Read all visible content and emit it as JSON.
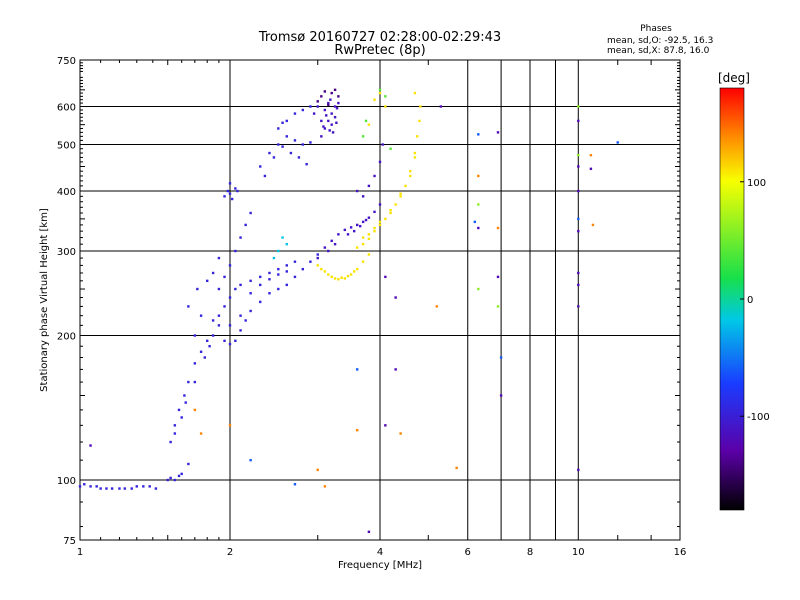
{
  "header": {
    "title_line1": "Tromsø 20160727 02:28:00-02:29:43",
    "title_line2": "RwPretec (8p)",
    "stats_title": "Phases",
    "stats_o": "mean, sd,O: -92.5, 16.3",
    "stats_x": "mean, sd,X:  87.8, 16.0"
  },
  "chart_data": {
    "type": "scatter",
    "xlabel": "Frequency [MHz]",
    "ylabel": "Stationary phase Virtual Height [km]",
    "xscale": "log",
    "yscale": "log",
    "xlim": [
      1,
      16
    ],
    "ylim": [
      75,
      750
    ],
    "xticks": [
      1,
      2,
      4,
      6,
      8,
      10,
      16
    ],
    "xtick_labels": [
      "1",
      "2",
      "4",
      "6",
      "8",
      "10",
      "16"
    ],
    "x_gridlines": [
      2,
      4,
      6,
      7,
      8,
      9,
      10
    ],
    "yticks": [
      75,
      100,
      200,
      300,
      400,
      500,
      600,
      750
    ],
    "ytick_labels": [
      "75",
      "100",
      "200",
      "300",
      "400",
      "500",
      "600",
      "750"
    ],
    "y_gridlines": [
      100,
      200,
      300,
      400,
      500,
      600
    ],
    "colorbar": {
      "label": "[deg]",
      "range": [
        -180,
        180
      ],
      "ticks": [
        100,
        0,
        -100
      ],
      "tick_labels": [
        "100",
        "0",
        "-100"
      ]
    },
    "series": [
      {
        "color_value": -95,
        "points": [
          [
            1.0,
            97
          ],
          [
            1.02,
            98
          ],
          [
            1.05,
            97
          ],
          [
            1.08,
            97
          ],
          [
            1.1,
            96
          ],
          [
            1.13,
            96
          ],
          [
            1.16,
            96
          ],
          [
            1.2,
            96
          ],
          [
            1.23,
            96
          ],
          [
            1.27,
            96
          ],
          [
            1.3,
            97
          ],
          [
            1.34,
            97
          ],
          [
            1.38,
            97
          ],
          [
            1.42,
            96
          ],
          [
            1.5,
            100
          ],
          [
            1.52,
            101
          ],
          [
            1.55,
            100
          ],
          [
            1.58,
            102
          ],
          [
            1.6,
            103
          ],
          [
            1.65,
            108
          ],
          [
            1.52,
            120
          ],
          [
            1.55,
            130
          ],
          [
            1.58,
            140
          ],
          [
            1.62,
            150
          ],
          [
            1.65,
            160
          ],
          [
            1.7,
            175
          ],
          [
            1.75,
            185
          ],
          [
            1.8,
            195
          ],
          [
            1.85,
            200
          ],
          [
            1.9,
            210
          ],
          [
            1.55,
            125
          ],
          [
            1.6,
            135
          ],
          [
            1.63,
            145
          ],
          [
            1.7,
            160
          ],
          [
            1.78,
            180
          ],
          [
            1.82,
            190
          ],
          [
            1.95,
            195
          ],
          [
            2.0,
            192
          ],
          [
            2.05,
            195
          ],
          [
            2.1,
            205
          ],
          [
            2.15,
            215
          ],
          [
            2.2,
            225
          ],
          [
            2.3,
            235
          ],
          [
            2.4,
            245
          ],
          [
            2.5,
            250
          ],
          [
            2.6,
            255
          ],
          [
            2.7,
            265
          ],
          [
            2.8,
            275
          ],
          [
            2.9,
            285
          ],
          [
            3.0,
            295
          ],
          [
            1.85,
            215
          ],
          [
            1.9,
            220
          ],
          [
            1.95,
            230
          ],
          [
            2.0,
            240
          ],
          [
            2.05,
            250
          ],
          [
            2.1,
            255
          ],
          [
            2.2,
            260
          ],
          [
            2.3,
            265
          ],
          [
            2.4,
            270
          ],
          [
            2.5,
            275
          ],
          [
            2.6,
            280
          ],
          [
            2.7,
            285
          ],
          [
            2.0,
            210
          ],
          [
            2.1,
            220
          ],
          [
            2.2,
            245
          ],
          [
            2.3,
            255
          ],
          [
            2.4,
            262
          ],
          [
            2.5,
            268
          ],
          [
            2.6,
            272
          ],
          [
            1.9,
            250
          ],
          [
            1.95,
            265
          ],
          [
            2.0,
            280
          ],
          [
            2.05,
            300
          ],
          [
            2.1,
            320
          ],
          [
            2.15,
            340
          ],
          [
            2.2,
            360
          ],
          [
            1.95,
            390
          ],
          [
            2.0,
            395
          ],
          [
            2.05,
            405
          ],
          [
            2.0,
            415
          ],
          [
            2.02,
            385
          ],
          [
            1.98,
            400
          ],
          [
            2.07,
            400
          ],
          [
            2.3,
            450
          ],
          [
            2.4,
            480
          ],
          [
            2.5,
            500
          ],
          [
            2.6,
            520
          ],
          [
            2.7,
            510
          ],
          [
            2.8,
            500
          ],
          [
            2.9,
            505
          ],
          [
            2.35,
            430
          ],
          [
            2.45,
            470
          ],
          [
            2.55,
            495
          ],
          [
            2.65,
            480
          ],
          [
            2.75,
            470
          ],
          [
            2.85,
            455
          ],
          [
            2.6,
            560
          ],
          [
            2.7,
            580
          ],
          [
            2.8,
            590
          ],
          [
            2.9,
            600
          ],
          [
            2.5,
            540
          ],
          [
            2.55,
            555
          ],
          [
            1.65,
            230
          ],
          [
            1.72,
            250
          ],
          [
            1.8,
            260
          ],
          [
            1.85,
            270
          ],
          [
            1.9,
            290
          ],
          [
            1.75,
            220
          ],
          [
            1.7,
            200
          ]
        ]
      },
      {
        "color_value": -110,
        "points": [
          [
            3.0,
            290
          ],
          [
            3.1,
            305
          ],
          [
            3.2,
            315
          ],
          [
            3.3,
            325
          ],
          [
            3.4,
            332
          ],
          [
            3.5,
            336
          ],
          [
            3.6,
            340
          ],
          [
            3.7,
            345
          ],
          [
            3.8,
            352
          ],
          [
            3.9,
            362
          ],
          [
            4.0,
            375
          ],
          [
            3.15,
            300
          ],
          [
            3.25,
            310
          ],
          [
            3.45,
            325
          ],
          [
            3.55,
            330
          ],
          [
            3.65,
            338
          ],
          [
            3.75,
            348
          ],
          [
            3.6,
            400
          ],
          [
            3.7,
            390
          ],
          [
            3.8,
            410
          ],
          [
            3.9,
            430
          ],
          [
            4.0,
            460
          ],
          [
            4.05,
            500
          ],
          [
            3.05,
            520
          ],
          [
            3.1,
            540
          ],
          [
            3.15,
            560
          ],
          [
            3.2,
            580
          ],
          [
            3.25,
            600
          ],
          [
            3.05,
            560
          ],
          [
            3.15,
            610
          ],
          [
            3.2,
            550
          ],
          [
            3.25,
            570
          ],
          [
            3.1,
            590
          ],
          [
            3.18,
            620
          ],
          [
            3.22,
            530
          ],
          [
            3.12,
            575
          ],
          [
            3.28,
            595
          ],
          [
            3.0,
            600
          ],
          [
            3.08,
            545
          ],
          [
            3.3,
            610
          ],
          [
            2.95,
            580
          ],
          [
            3.17,
            535
          ],
          [
            3.27,
            555
          ]
        ]
      },
      {
        "color_value": -140,
        "points": [
          [
            3.0,
            615
          ],
          [
            3.05,
            630
          ],
          [
            3.1,
            645
          ],
          [
            3.2,
            640
          ],
          [
            3.3,
            630
          ],
          [
            3.25,
            650
          ],
          [
            3.15,
            605
          ]
        ]
      },
      {
        "color_value": 110,
        "points": [
          [
            3.0,
            280
          ],
          [
            3.1,
            272
          ],
          [
            3.2,
            265
          ],
          [
            3.3,
            262
          ],
          [
            3.4,
            263
          ],
          [
            3.5,
            268
          ],
          [
            3.6,
            275
          ],
          [
            3.7,
            285
          ],
          [
            3.8,
            295
          ],
          [
            3.05,
            275
          ],
          [
            3.15,
            268
          ],
          [
            3.25,
            263
          ],
          [
            3.35,
            264
          ],
          [
            3.45,
            266
          ],
          [
            3.55,
            272
          ],
          [
            3.6,
            305
          ],
          [
            3.7,
            310
          ],
          [
            3.8,
            318
          ],
          [
            3.9,
            330
          ],
          [
            4.0,
            340
          ],
          [
            4.1,
            350
          ],
          [
            4.2,
            360
          ],
          [
            4.3,
            375
          ],
          [
            4.4,
            390
          ],
          [
            4.5,
            410
          ],
          [
            4.6,
            440
          ],
          [
            4.7,
            480
          ],
          [
            4.75,
            520
          ],
          [
            4.8,
            560
          ],
          [
            4.82,
            600
          ],
          [
            3.7,
            320
          ],
          [
            3.8,
            325
          ],
          [
            3.9,
            335
          ],
          [
            4.0,
            345
          ],
          [
            4.2,
            365
          ],
          [
            4.4,
            395
          ],
          [
            4.6,
            430
          ],
          [
            4.7,
            470
          ],
          [
            3.8,
            550
          ],
          [
            3.9,
            620
          ],
          [
            4.0,
            640
          ],
          [
            4.1,
            600
          ],
          [
            4.7,
            640
          ]
        ]
      },
      {
        "color_value": 40,
        "points": [
          [
            3.7,
            520
          ],
          [
            3.75,
            560
          ],
          [
            4.2,
            490
          ],
          [
            4.0,
            650
          ],
          [
            4.1,
            630
          ]
        ]
      },
      {
        "color_value": -20,
        "points": [
          [
            2.5,
            300
          ],
          [
            2.6,
            310
          ],
          [
            2.45,
            290
          ],
          [
            2.55,
            320
          ]
        ]
      },
      {
        "color_value": 140,
        "points": [
          [
            1.7,
            140
          ],
          [
            1.75,
            125
          ],
          [
            2.0,
            130
          ],
          [
            3.1,
            97
          ],
          [
            3.0,
            105
          ],
          [
            3.6,
            127
          ],
          [
            4.4,
            125
          ],
          [
            5.2,
            230
          ],
          [
            5.7,
            106
          ],
          [
            6.3,
            430
          ],
          [
            6.9,
            335
          ],
          [
            10.6,
            475
          ],
          [
            10.7,
            340
          ]
        ]
      },
      {
        "color_value": 60,
        "points": [
          [
            6.3,
            250
          ],
          [
            6.3,
            375
          ],
          [
            6.9,
            230
          ],
          [
            10.0,
            230
          ],
          [
            10.0,
            600
          ],
          [
            10.0,
            475
          ]
        ]
      },
      {
        "color_value": -60,
        "points": [
          [
            2.7,
            98
          ],
          [
            3.6,
            170
          ],
          [
            6.2,
            345
          ],
          [
            7.0,
            180
          ],
          [
            6.3,
            525
          ],
          [
            12.0,
            505
          ],
          [
            10.0,
            350
          ],
          [
            2.2,
            110
          ]
        ]
      },
      {
        "color_value": -120,
        "points": [
          [
            4.1,
            130
          ],
          [
            4.3,
            170
          ],
          [
            4.1,
            265
          ],
          [
            4.3,
            240
          ],
          [
            5.3,
            600
          ],
          [
            6.3,
            335
          ],
          [
            6.9,
            265
          ],
          [
            7.0,
            150
          ],
          [
            6.9,
            530
          ],
          [
            10.0,
            560
          ],
          [
            10.0,
            450
          ],
          [
            10.0,
            400
          ],
          [
            10.0,
            330
          ],
          [
            10.0,
            270
          ],
          [
            10.0,
            255
          ],
          [
            10.0,
            230
          ],
          [
            10.0,
            105
          ],
          [
            10.6,
            445
          ],
          [
            3.8,
            78
          ],
          [
            1.05,
            118
          ]
        ]
      }
    ]
  }
}
